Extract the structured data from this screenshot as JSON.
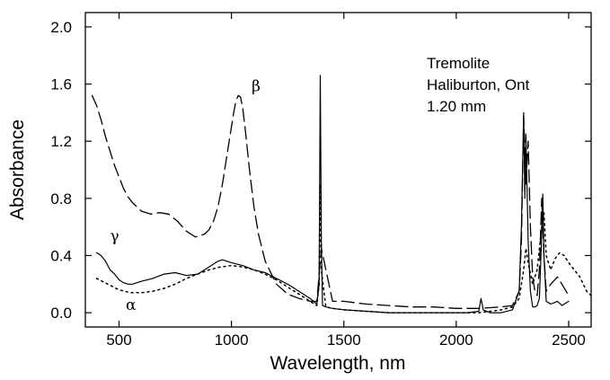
{
  "chart_data": {
    "type": "line",
    "xlabel": "Wavelength, nm",
    "ylabel": "Absorbance",
    "xlim": [
      350,
      2600
    ],
    "ylim": [
      -0.1,
      2.1
    ],
    "xticks": [
      500,
      1000,
      1500,
      2000,
      2500
    ],
    "yticks": [
      0.0,
      0.4,
      0.8,
      1.2,
      1.6,
      2.0
    ],
    "xtick_labels": [
      "500",
      "1000",
      "1500",
      "2000",
      "2500"
    ],
    "ytick_labels": [
      "0.0",
      "0.4",
      "0.8",
      "1.2",
      "1.6",
      "2.0"
    ],
    "grid": false,
    "legend": "none",
    "annotation_lines": [
      "Tremolite",
      "Haliburton, Ont",
      "1.20 mm"
    ],
    "series": [
      {
        "name": "β",
        "label_at": [
          1090,
          1.55
        ],
        "dash": "long-dash",
        "x": [
          380,
          400,
          420,
          440,
          460,
          480,
          500,
          520,
          540,
          560,
          580,
          600,
          640,
          680,
          720,
          760,
          800,
          840,
          880,
          900,
          920,
          940,
          960,
          980,
          1000,
          1010,
          1020,
          1030,
          1040,
          1050,
          1060,
          1070,
          1080,
          1100,
          1120,
          1150,
          1200,
          1250,
          1300,
          1350,
          1380,
          1400,
          1450,
          1500,
          1600,
          1700,
          1800,
          1900,
          2000,
          2100,
          2200,
          2250,
          2280,
          2290,
          2300,
          2310,
          2320,
          2330,
          2340,
          2350,
          2360,
          2370,
          2380,
          2390,
          2400,
          2420,
          2450,
          2470,
          2500
        ],
        "y": [
          1.52,
          1.45,
          1.35,
          1.23,
          1.13,
          1.03,
          0.95,
          0.87,
          0.81,
          0.77,
          0.74,
          0.71,
          0.69,
          0.7,
          0.69,
          0.64,
          0.57,
          0.53,
          0.55,
          0.58,
          0.64,
          0.74,
          0.9,
          1.1,
          1.3,
          1.4,
          1.48,
          1.52,
          1.51,
          1.43,
          1.3,
          1.15,
          1.0,
          0.74,
          0.55,
          0.36,
          0.2,
          0.13,
          0.1,
          0.08,
          0.08,
          0.45,
          0.08,
          0.08,
          0.06,
          0.05,
          0.04,
          0.04,
          0.03,
          0.03,
          0.04,
          0.05,
          0.15,
          0.5,
          1.38,
          0.9,
          1.2,
          0.6,
          0.25,
          0.15,
          0.12,
          0.3,
          0.8,
          0.4,
          0.15,
          0.2,
          0.25,
          0.2,
          0.12
        ]
      },
      {
        "name": "γ",
        "label_at": [
          460,
          0.5
        ],
        "dash": "solid",
        "x": [
          400,
          420,
          440,
          460,
          480,
          500,
          520,
          540,
          560,
          580,
          600,
          650,
          700,
          750,
          800,
          850,
          900,
          940,
          960,
          980,
          1000,
          1050,
          1100,
          1150,
          1200,
          1250,
          1300,
          1350,
          1380,
          1390,
          1395,
          1400,
          1405,
          1420,
          1450,
          1500,
          1600,
          1700,
          1800,
          1900,
          2000,
          2050,
          2100,
          2110,
          2120,
          2150,
          2200,
          2250,
          2280,
          2290,
          2300,
          2305,
          2310,
          2320,
          2330,
          2340,
          2350,
          2360,
          2370,
          2380,
          2385,
          2390,
          2400,
          2420,
          2450,
          2470,
          2500
        ],
        "y": [
          0.42,
          0.4,
          0.36,
          0.3,
          0.27,
          0.23,
          0.21,
          0.2,
          0.2,
          0.21,
          0.22,
          0.24,
          0.27,
          0.28,
          0.26,
          0.27,
          0.32,
          0.36,
          0.37,
          0.36,
          0.35,
          0.33,
          0.3,
          0.28,
          0.24,
          0.2,
          0.15,
          0.1,
          0.06,
          0.2,
          1.66,
          0.5,
          0.05,
          0.04,
          0.03,
          0.02,
          0.01,
          0.0,
          0.0,
          0.0,
          0.0,
          0.0,
          0.01,
          0.1,
          0.02,
          0.0,
          0.0,
          0.02,
          0.15,
          0.6,
          1.4,
          0.8,
          1.25,
          0.5,
          0.15,
          0.04,
          0.04,
          0.05,
          0.1,
          0.55,
          0.83,
          0.4,
          0.08,
          0.06,
          0.08,
          0.05,
          0.08
        ]
      },
      {
        "name": "α",
        "label_at": [
          530,
          0.02
        ],
        "dash": "dotted",
        "x": [
          400,
          450,
          500,
          550,
          600,
          650,
          700,
          750,
          800,
          850,
          900,
          950,
          1000,
          1050,
          1100,
          1150,
          1200,
          1250,
          1300,
          1350,
          1380,
          1390,
          1395,
          1400,
          1420,
          1450,
          1500,
          1600,
          1700,
          1800,
          1900,
          2000,
          2100,
          2200,
          2250,
          2280,
          2300,
          2310,
          2320,
          2340,
          2360,
          2380,
          2390,
          2400,
          2420,
          2440,
          2460,
          2480,
          2500,
          2550,
          2580,
          2600
        ],
        "y": [
          0.24,
          0.2,
          0.16,
          0.14,
          0.14,
          0.15,
          0.17,
          0.2,
          0.24,
          0.27,
          0.3,
          0.32,
          0.33,
          0.32,
          0.3,
          0.27,
          0.23,
          0.18,
          0.13,
          0.08,
          0.05,
          0.2,
          0.9,
          0.3,
          0.04,
          0.03,
          0.02,
          0.01,
          0.0,
          0.0,
          0.0,
          0.0,
          0.0,
          0.02,
          0.04,
          0.1,
          0.3,
          0.45,
          0.35,
          0.2,
          0.3,
          0.6,
          0.7,
          0.4,
          0.3,
          0.38,
          0.42,
          0.4,
          0.35,
          0.25,
          0.15,
          0.12
        ]
      }
    ]
  }
}
